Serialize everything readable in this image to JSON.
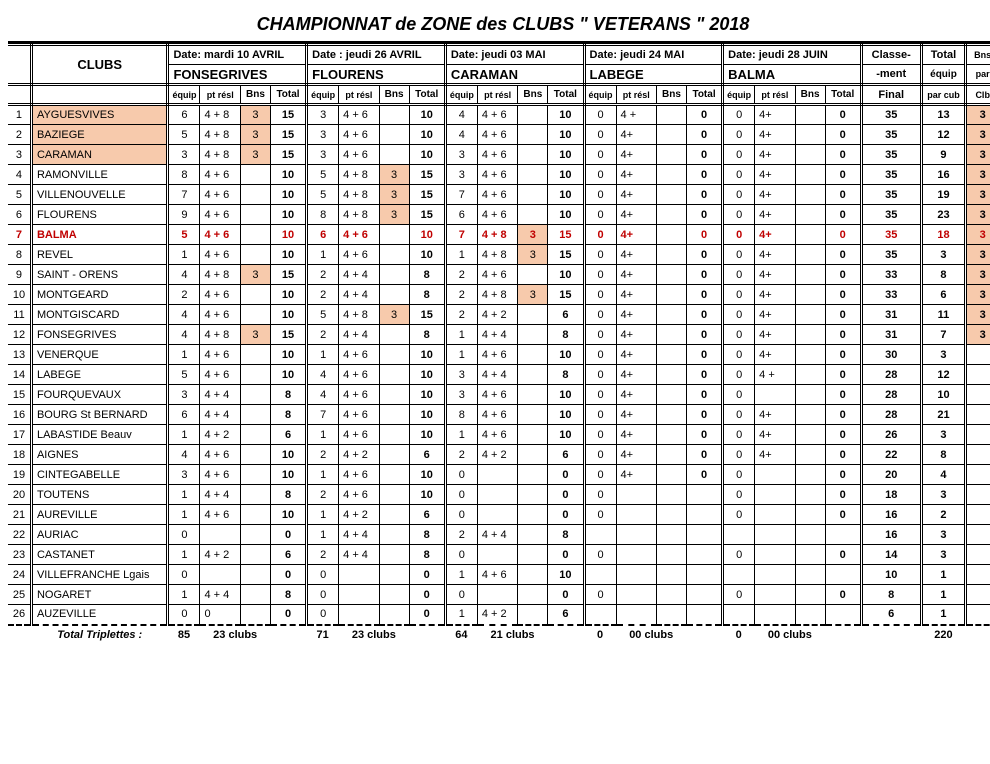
{
  "title": "CHAMPIONNAT  de  ZONE  des  CLUBS    \" VETERANS \"    2018",
  "clubs_header": "CLUBS",
  "venues": [
    {
      "date": "Date: mardi 10 AVRIL",
      "name": "FONSEGRIVES"
    },
    {
      "date": "Date : jeudi 26 AVRIL",
      "name": "FLOURENS"
    },
    {
      "date": "Date: jeudi 03 MAI",
      "name": "CARAMAN"
    },
    {
      "date": "Date: jeudi 24 MAI",
      "name": "LABEGE"
    },
    {
      "date": "Date: jeudi  28  JUIN",
      "name": "BALMA"
    }
  ],
  "sub_cols": {
    "equip": "équip",
    "pt": "pt résl",
    "bns": "Bns",
    "total": "Total"
  },
  "right_headers": {
    "classe_top": "Classe-",
    "classe_bot": "-ment",
    "classe_sub": "Final",
    "total_top": "Total",
    "total_bot": "équip",
    "total_sub": "par cub",
    "bns_top": "Bns",
    "bns_bot": "par",
    "bns_sub": "Clb"
  },
  "highlight_row": 7,
  "rows": [
    {
      "n": 1,
      "club": "AYGUESVIVES",
      "club_hl": true,
      "d": [
        [
          "6",
          "4 + 8",
          "3",
          "15",
          true
        ],
        [
          "3",
          "4 + 6",
          "",
          "10",
          false
        ],
        [
          "4",
          "4 + 6",
          "",
          "10",
          false
        ],
        [
          "0",
          "4 +",
          "",
          "0",
          false
        ],
        [
          "0",
          "4+",
          "",
          "0",
          false
        ]
      ],
      "final": "35",
      "teq": "13",
      "bns": "3",
      "bns_hl": true
    },
    {
      "n": 2,
      "club": "BAZIEGE",
      "club_hl": true,
      "d": [
        [
          "5",
          "4 + 8",
          "3",
          "15",
          true
        ],
        [
          "3",
          "4 + 6",
          "",
          "10",
          false
        ],
        [
          "4",
          "4 + 6",
          "",
          "10",
          false
        ],
        [
          "0",
          "4+",
          "",
          "0",
          false
        ],
        [
          "0",
          "4+",
          "",
          "0",
          false
        ]
      ],
      "final": "35",
      "teq": "12",
      "bns": "3",
      "bns_hl": true
    },
    {
      "n": 3,
      "club": "CARAMAN",
      "club_hl": true,
      "d": [
        [
          "3",
          "4 + 8",
          "3",
          "15",
          true
        ],
        [
          "3",
          "4 + 6",
          "",
          "10",
          false
        ],
        [
          "3",
          "4 + 6",
          "",
          "10",
          false
        ],
        [
          "0",
          "4+",
          "",
          "0",
          false
        ],
        [
          "0",
          "4+",
          "",
          "0",
          false
        ]
      ],
      "final": "35",
      "teq": "9",
      "bns": "3",
      "bns_hl": true
    },
    {
      "n": 4,
      "club": "RAMONVILLE",
      "d": [
        [
          "8",
          "4 + 6",
          "",
          "10",
          false
        ],
        [
          "5",
          "4 + 8",
          "3",
          "15",
          true
        ],
        [
          "3",
          "4 + 6",
          "",
          "10",
          false
        ],
        [
          "0",
          "4+",
          "",
          "0",
          false
        ],
        [
          "0",
          "4+",
          "",
          "0",
          false
        ]
      ],
      "final": "35",
      "teq": "16",
      "bns": "3",
      "bns_hl": true
    },
    {
      "n": 5,
      "club": "VILLENOUVELLE",
      "d": [
        [
          "7",
          "4 + 6",
          "",
          "10",
          false
        ],
        [
          "5",
          "4 + 8",
          "3",
          "15",
          true
        ],
        [
          "7",
          "4 + 6",
          "",
          "10",
          false
        ],
        [
          "0",
          "4+",
          "",
          "0",
          false
        ],
        [
          "0",
          "4+",
          "",
          "0",
          false
        ]
      ],
      "final": "35",
      "teq": "19",
      "bns": "3",
      "bns_hl": true
    },
    {
      "n": 6,
      "club": "FLOURENS",
      "d": [
        [
          "9",
          "4 + 6",
          "",
          "10",
          false
        ],
        [
          "8",
          "4 + 8",
          "3",
          "15",
          true
        ],
        [
          "6",
          "4 + 6",
          "",
          "10",
          false
        ],
        [
          "0",
          "4+",
          "",
          "0",
          false
        ],
        [
          "0",
          "4+",
          "",
          "0",
          false
        ]
      ],
      "final": "35",
      "teq": "23",
      "bns": "3",
      "bns_hl": true
    },
    {
      "n": 7,
      "club": "BALMA",
      "d": [
        [
          "5",
          "4 + 6",
          "",
          "10",
          false
        ],
        [
          "6",
          "4 + 6",
          "",
          "10",
          false
        ],
        [
          "7",
          "4 + 8",
          "3",
          "15",
          true
        ],
        [
          "0",
          "4+",
          "",
          "0",
          false
        ],
        [
          "0",
          "4+",
          "",
          "0",
          false
        ]
      ],
      "final": "35",
      "teq": "18",
      "bns": "3",
      "bns_hl": true
    },
    {
      "n": 8,
      "club": "REVEL",
      "d": [
        [
          "1",
          "4 + 6",
          "",
          "10",
          false
        ],
        [
          "1",
          "4 + 6",
          "",
          "10",
          false
        ],
        [
          "1",
          "4 + 8",
          "3",
          "15",
          true
        ],
        [
          "0",
          "4+",
          "",
          "0",
          false
        ],
        [
          "0",
          "4+",
          "",
          "0",
          false
        ]
      ],
      "final": "35",
      "teq": "3",
      "bns": "3",
      "bns_hl": true
    },
    {
      "n": 9,
      "club": "SAINT - ORENS",
      "d": [
        [
          "4",
          "4 + 8",
          "3",
          "15",
          true
        ],
        [
          "2",
          "4 + 4",
          "",
          "8",
          false
        ],
        [
          "2",
          "4 + 6",
          "",
          "10",
          false
        ],
        [
          "0",
          "4+",
          "",
          "0",
          false
        ],
        [
          "0",
          "4+",
          "",
          "0",
          false
        ]
      ],
      "final": "33",
      "teq": "8",
      "bns": "3",
      "bns_hl": true
    },
    {
      "n": 10,
      "club": "MONTGEARD",
      "d": [
        [
          "2",
          "4 + 6",
          "",
          "10",
          false
        ],
        [
          "2",
          "4 + 4",
          "",
          "8",
          false
        ],
        [
          "2",
          "4 + 8",
          "3",
          "15",
          true
        ],
        [
          "0",
          "4+",
          "",
          "0",
          false
        ],
        [
          "0",
          "4+",
          "",
          "0",
          false
        ]
      ],
      "final": "33",
      "teq": "6",
      "bns": "3",
      "bns_hl": true
    },
    {
      "n": 11,
      "club": "MONTGISCARD",
      "d": [
        [
          "4",
          "4 + 6",
          "",
          "10",
          false
        ],
        [
          "5",
          "4 + 8",
          "3",
          "15",
          true
        ],
        [
          "2",
          "4 + 2",
          "",
          "6",
          false
        ],
        [
          "0",
          "4+",
          "",
          "0",
          false
        ],
        [
          "0",
          "4+",
          "",
          "0",
          false
        ]
      ],
      "final": "31",
      "teq": "11",
      "bns": "3",
      "bns_hl": true
    },
    {
      "n": 12,
      "club": "FONSEGRIVES",
      "d": [
        [
          "4",
          "4 + 8",
          "3",
          "15",
          true
        ],
        [
          "2",
          "4 + 4",
          "",
          "8",
          false
        ],
        [
          "1",
          "4 + 4",
          "",
          "8",
          false
        ],
        [
          "0",
          "4+",
          "",
          "0",
          false
        ],
        [
          "0",
          "4+",
          "",
          "0",
          false
        ]
      ],
      "final": "31",
      "teq": "7",
      "bns": "3",
      "bns_hl": true
    },
    {
      "n": 13,
      "club": "VENERQUE",
      "d": [
        [
          "1",
          "4 + 6",
          "",
          "10",
          false
        ],
        [
          "1",
          "4 + 6",
          "",
          "10",
          false
        ],
        [
          "1",
          "4 + 6",
          "",
          "10",
          false
        ],
        [
          "0",
          "4+",
          "",
          "0",
          false
        ],
        [
          "0",
          "4+",
          "",
          "0",
          false
        ]
      ],
      "final": "30",
      "teq": "3",
      "bns": ""
    },
    {
      "n": 14,
      "club": "LABEGE",
      "d": [
        [
          "5",
          "4 + 6",
          "",
          "10",
          false
        ],
        [
          "4",
          "4 + 6",
          "",
          "10",
          false
        ],
        [
          "3",
          "4 + 4",
          "",
          "8",
          false
        ],
        [
          "0",
          "4+",
          "",
          "0",
          false
        ],
        [
          "0",
          "4 +",
          "",
          "0",
          false
        ]
      ],
      "final": "28",
      "teq": "12",
      "bns": ""
    },
    {
      "n": 15,
      "club": "FOURQUEVAUX",
      "d": [
        [
          "3",
          "4 + 4",
          "",
          "8",
          false
        ],
        [
          "4",
          "4 + 6",
          "",
          "10",
          false
        ],
        [
          "3",
          "4 + 6",
          "",
          "10",
          false
        ],
        [
          "0",
          "4+",
          "",
          "0",
          false
        ],
        [
          "0",
          "",
          "",
          "0",
          false
        ]
      ],
      "final": "28",
      "teq": "10",
      "bns": ""
    },
    {
      "n": 16,
      "club": "BOURG St BERNARD",
      "d": [
        [
          "6",
          "4 + 4",
          "",
          "8",
          false
        ],
        [
          "7",
          "4 + 6",
          "",
          "10",
          false
        ],
        [
          "8",
          "4 + 6",
          "",
          "10",
          false
        ],
        [
          "0",
          "4+",
          "",
          "0",
          false
        ],
        [
          "0",
          "4+",
          "",
          "0",
          false
        ]
      ],
      "final": "28",
      "teq": "21",
      "bns": ""
    },
    {
      "n": 17,
      "club": "LABASTIDE Beauv",
      "d": [
        [
          "1",
          "4 + 2",
          "",
          "6",
          false
        ],
        [
          "1",
          "4 + 6",
          "",
          "10",
          false
        ],
        [
          "1",
          "4 + 6",
          "",
          "10",
          false
        ],
        [
          "0",
          "4+",
          "",
          "0",
          false
        ],
        [
          "0",
          "4+",
          "",
          "0",
          false
        ]
      ],
      "final": "26",
      "teq": "3",
      "bns": ""
    },
    {
      "n": 18,
      "club": "AIGNES",
      "d": [
        [
          "4",
          "4 + 6",
          "",
          "10",
          false
        ],
        [
          "2",
          "4 + 2",
          "",
          "6",
          false
        ],
        [
          "2",
          "4 + 2",
          "",
          "6",
          false
        ],
        [
          "0",
          "4+",
          "",
          "0",
          false
        ],
        [
          "0",
          "4+",
          "",
          "0",
          false
        ]
      ],
      "final": "22",
      "teq": "8",
      "bns": ""
    },
    {
      "n": 19,
      "club": "CINTEGABELLE",
      "d": [
        [
          "3",
          "4 + 6",
          "",
          "10",
          false
        ],
        [
          "1",
          "4 + 6",
          "",
          "10",
          false
        ],
        [
          "0",
          "",
          "",
          "0",
          false
        ],
        [
          "0",
          "4+",
          "",
          "0",
          false
        ],
        [
          "0",
          "",
          "",
          "0",
          false
        ]
      ],
      "final": "20",
      "teq": "4",
      "bns": ""
    },
    {
      "n": 20,
      "club": "TOUTENS",
      "d": [
        [
          "1",
          "4 + 4",
          "",
          "8",
          false
        ],
        [
          "2",
          "4 + 6",
          "",
          "10",
          false
        ],
        [
          "0",
          "",
          "",
          "0",
          false
        ],
        [
          "0",
          "",
          "",
          "",
          false
        ],
        [
          "0",
          "",
          "",
          "0",
          false
        ]
      ],
      "final": "18",
      "teq": "3",
      "bns": ""
    },
    {
      "n": 21,
      "club": "AUREVILLE",
      "d": [
        [
          "1",
          "4 + 6",
          "",
          "10",
          false
        ],
        [
          "1",
          "4 + 2",
          "",
          "6",
          false
        ],
        [
          "0",
          "",
          "",
          "0",
          false
        ],
        [
          "0",
          "",
          "",
          "",
          false
        ],
        [
          "0",
          "",
          "",
          "0",
          false
        ]
      ],
      "final": "16",
      "teq": "2",
      "bns": ""
    },
    {
      "n": 22,
      "club": "AURIAC",
      "d": [
        [
          "0",
          "",
          "",
          "0",
          false
        ],
        [
          "1",
          "4 + 4",
          "",
          "8",
          false
        ],
        [
          "2",
          "4 + 4",
          "",
          "8",
          false
        ],
        [
          "",
          "",
          "",
          "",
          false
        ],
        [
          "",
          "",
          "",
          "",
          false
        ]
      ],
      "final": "16",
      "teq": "3",
      "bns": ""
    },
    {
      "n": 23,
      "club": "CASTANET",
      "d": [
        [
          "1",
          "4 + 2",
          "",
          "6",
          false
        ],
        [
          "2",
          "4 + 4",
          "",
          "8",
          false
        ],
        [
          "0",
          "",
          "",
          "0",
          false
        ],
        [
          "0",
          "",
          "",
          "",
          false
        ],
        [
          "0",
          "",
          "",
          "0",
          false
        ]
      ],
      "final": "14",
      "teq": "3",
      "bns": ""
    },
    {
      "n": 24,
      "club": "VILLEFRANCHE Lgais",
      "d": [
        [
          "0",
          "",
          "",
          "0",
          false
        ],
        [
          "0",
          "",
          "",
          "0",
          false
        ],
        [
          "1",
          "4 + 6",
          "",
          "10",
          false
        ],
        [
          "",
          "",
          "",
          "",
          false
        ],
        [
          "",
          "",
          "",
          "",
          false
        ]
      ],
      "final": "10",
      "teq": "1",
      "bns": ""
    },
    {
      "n": 25,
      "club": "NOGARET",
      "d": [
        [
          "1",
          "4 + 4",
          "",
          "8",
          false
        ],
        [
          "0",
          "",
          "",
          "0",
          false
        ],
        [
          "0",
          "",
          "",
          "0",
          false
        ],
        [
          "0",
          "",
          "",
          "",
          false
        ],
        [
          "0",
          "",
          "",
          "0",
          false
        ]
      ],
      "final": "8",
      "teq": "1",
      "bns": ""
    },
    {
      "n": 26,
      "club": "AUZEVILLE",
      "d": [
        [
          "0",
          "0",
          "",
          "0",
          false
        ],
        [
          "0",
          "",
          "",
          "0",
          false
        ],
        [
          "1",
          "4 + 2",
          "",
          "6",
          false
        ],
        [
          "",
          "",
          "",
          "",
          false
        ],
        [
          "",
          "",
          "",
          "",
          false
        ]
      ],
      "final": "6",
      "teq": "1",
      "bns": ""
    }
  ],
  "totals": {
    "label": "Total Triplettes :",
    "per_venue": [
      {
        "eq": "85",
        "clubs": "23 clubs"
      },
      {
        "eq": "71",
        "clubs": "23 clubs"
      },
      {
        "eq": "64",
        "clubs": "21 clubs"
      },
      {
        "eq": "0",
        "clubs": "00 clubs"
      },
      {
        "eq": "0",
        "clubs": "00 clubs"
      }
    ],
    "grand_teq": "220"
  }
}
